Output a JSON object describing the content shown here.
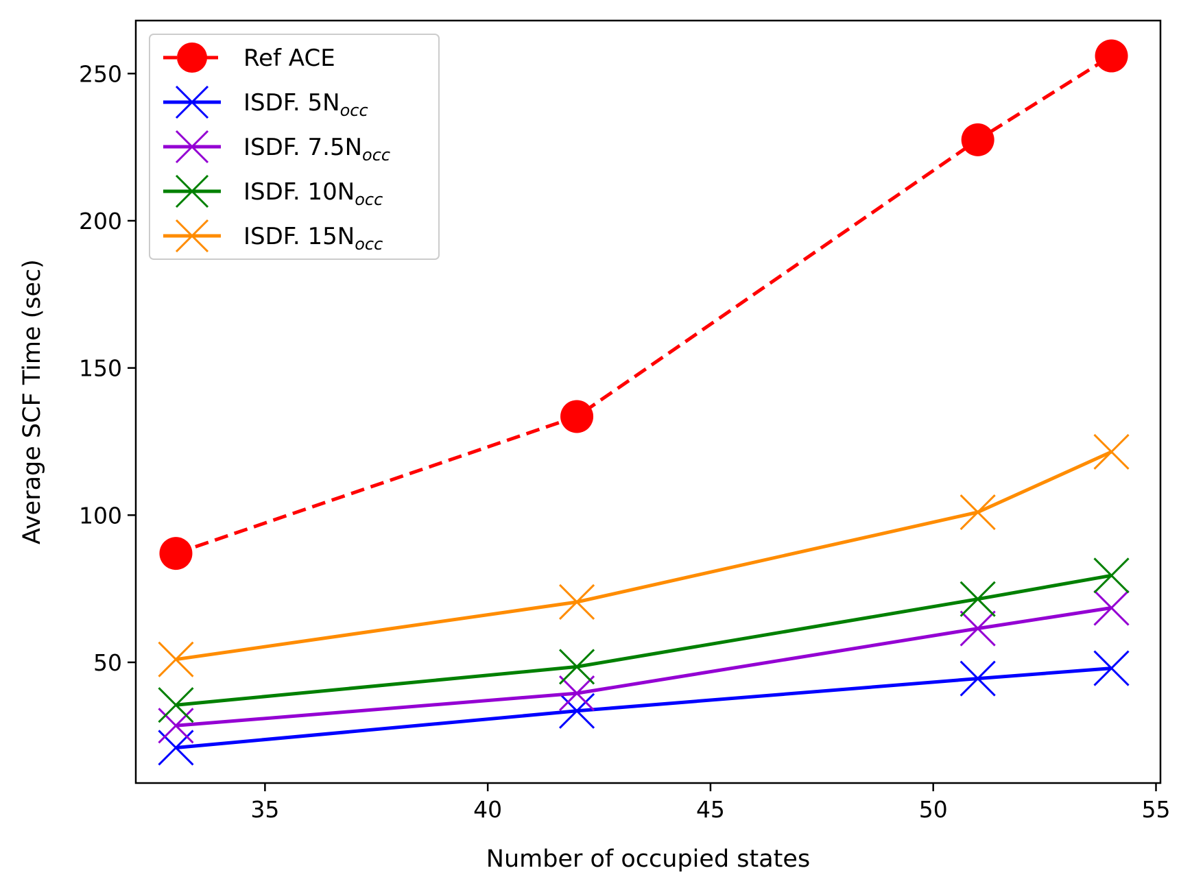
{
  "chart_data": {
    "type": "line",
    "xlabel": "Number of occupied states",
    "ylabel": "Average SCF Time (sec)",
    "xlim": [
      32.1,
      55.1
    ],
    "ylim": [
      9,
      268
    ],
    "xticks": [
      35,
      40,
      45,
      50,
      55
    ],
    "yticks": [
      50,
      100,
      150,
      200,
      250
    ],
    "grid": false,
    "legend_position": "top-left",
    "series": [
      {
        "name": "Ref ACE",
        "legend_main": "Ref ACE",
        "legend_sub": "",
        "color": "#ff0000",
        "style": "dashed",
        "marker": "circle",
        "x": [
          33,
          42,
          51,
          54
        ],
        "y": [
          87,
          133.5,
          227.5,
          256
        ]
      },
      {
        "name": "ISDF. 5N_occ",
        "legend_main": "ISDF. 5N",
        "legend_sub": "occ",
        "color": "#0000ff",
        "style": "solid",
        "marker": "x",
        "x": [
          33,
          42,
          51,
          54
        ],
        "y": [
          21,
          33.5,
          44.5,
          48
        ]
      },
      {
        "name": "ISDF. 7.5N_occ",
        "legend_main": "ISDF. 7.5N",
        "legend_sub": "occ",
        "color": "#9400d3",
        "style": "solid",
        "marker": "x",
        "x": [
          33,
          42,
          51,
          54
        ],
        "y": [
          28.5,
          39.5,
          61.5,
          68.5
        ]
      },
      {
        "name": "ISDF. 10N_occ",
        "legend_main": "ISDF. 10N",
        "legend_sub": "occ",
        "color": "#008000",
        "style": "solid",
        "marker": "x",
        "x": [
          33,
          42,
          51,
          54
        ],
        "y": [
          35.5,
          48.5,
          71.5,
          79.5
        ]
      },
      {
        "name": "ISDF. 15N_occ",
        "legend_main": "ISDF. 15N",
        "legend_sub": "occ",
        "color": "#ff8c00",
        "style": "solid",
        "marker": "x",
        "x": [
          33,
          42,
          51,
          54
        ],
        "y": [
          51,
          70.5,
          101,
          121.5
        ]
      }
    ]
  }
}
